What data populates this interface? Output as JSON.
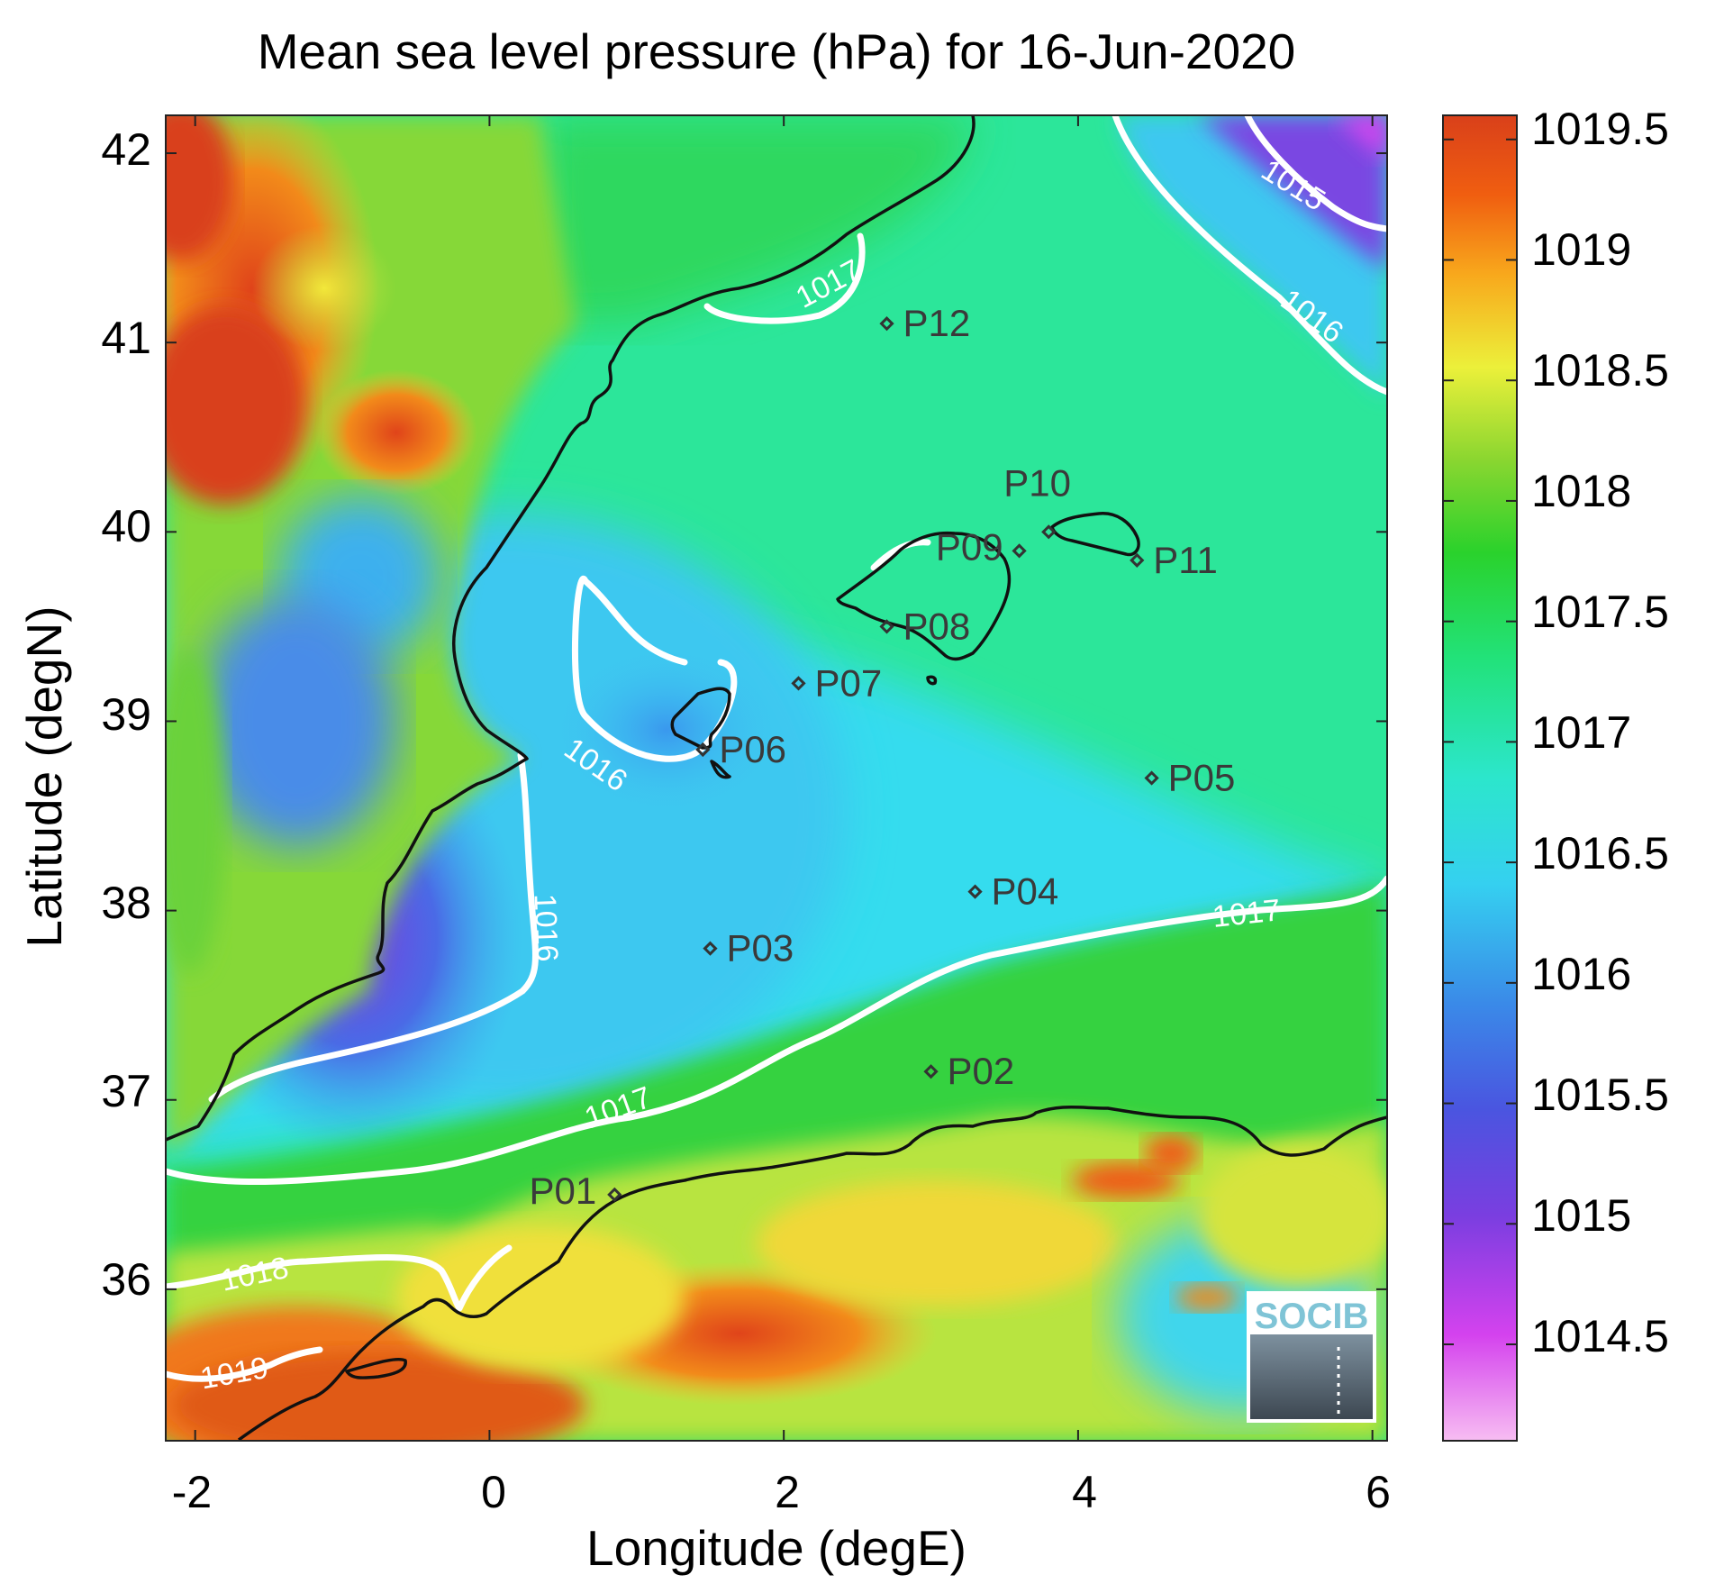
{
  "title": "Mean sea level pressure (hPa) for 16-Jun-2020",
  "xlabel": "Longitude (degE)",
  "ylabel": "Latitude (degN)",
  "x_ticks": [
    "-2",
    "0",
    "2",
    "4",
    "6"
  ],
  "y_ticks": [
    "42",
    "41",
    "40",
    "39",
    "38",
    "37",
    "36"
  ],
  "colorbar_ticks": [
    "1019.5",
    "1019",
    "1018.5",
    "1018",
    "1017.5",
    "1017",
    "1016.5",
    "1016",
    "1015.5",
    "1015",
    "1014.5"
  ],
  "logo_text": "SOCIB",
  "contour_labels": [
    "1015",
    "1016",
    "1017",
    "1016",
    "1016",
    "1017",
    "1017",
    "1018",
    "1019"
  ],
  "stations": [
    {
      "id": "P01",
      "lon": 0.85,
      "lat": 36.5
    },
    {
      "id": "P02",
      "lon": 3.0,
      "lat": 37.15
    },
    {
      "id": "P03",
      "lon": 1.5,
      "lat": 37.8
    },
    {
      "id": "P04",
      "lon": 3.3,
      "lat": 38.1
    },
    {
      "id": "P05",
      "lon": 4.5,
      "lat": 38.7
    },
    {
      "id": "P06",
      "lon": 1.45,
      "lat": 38.85
    },
    {
      "id": "P07",
      "lon": 2.1,
      "lat": 39.2
    },
    {
      "id": "P08",
      "lon": 2.7,
      "lat": 39.5
    },
    {
      "id": "P09",
      "lon": 3.6,
      "lat": 39.9
    },
    {
      "id": "P10",
      "lon": 3.8,
      "lat": 40.0
    },
    {
      "id": "P11",
      "lon": 4.4,
      "lat": 39.85
    },
    {
      "id": "P12",
      "lon": 2.7,
      "lat": 41.1
    }
  ],
  "chart_data": {
    "type": "heatmap",
    "title": "Mean sea level pressure (hPa) for 16-Jun-2020",
    "xlabel": "Longitude (degE)",
    "ylabel": "Latitude (degN)",
    "xlim": [
      -2.2,
      6.1
    ],
    "ylim": [
      35.2,
      42.2
    ],
    "colorbar_range": [
      1014.1,
      1019.6
    ],
    "colorbar_units": "hPa",
    "colormap": [
      "#f7bdf2",
      "#d442ee",
      "#7a3ee0",
      "#3a6ee6",
      "#35b4f0",
      "#2ce6d2",
      "#22e278",
      "#2ad22c",
      "#7dd630",
      "#ecf03a",
      "#f8a81c",
      "#f05e10",
      "#d9401a"
    ],
    "contour_levels": [
      1015,
      1016,
      1017,
      1018,
      1019
    ],
    "stations": [
      "P01",
      "P02",
      "P03",
      "P04",
      "P05",
      "P06",
      "P07",
      "P08",
      "P09",
      "P10",
      "P11",
      "P12"
    ]
  }
}
